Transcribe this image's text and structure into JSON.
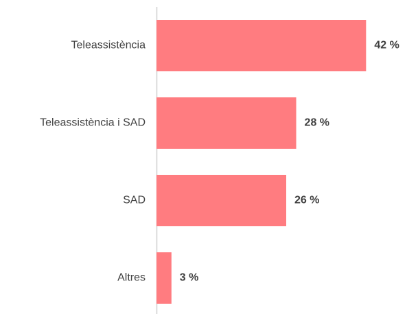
{
  "chart_data": {
    "type": "bar",
    "orientation": "horizontal",
    "categories": [
      "Teleassistència",
      "Teleassistència i SAD",
      "SAD",
      "Altres"
    ],
    "values": [
      42,
      28,
      26,
      3
    ],
    "value_labels": [
      "42 %",
      "28 %",
      "26 %",
      "3 %"
    ],
    "color": "#ff7c80"
  }
}
